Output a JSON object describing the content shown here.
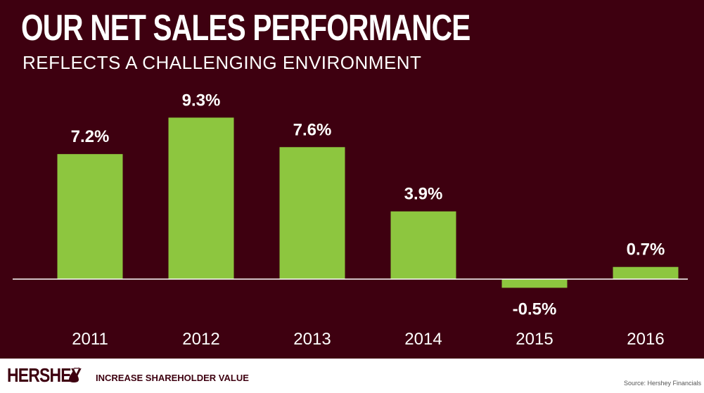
{
  "header": {
    "title": "OUR NET SALES PERFORMANCE",
    "subtitle": "REFLECTS A CHALLENGING ENVIRONMENT"
  },
  "chart_data": {
    "type": "bar",
    "categories": [
      "2011",
      "2012",
      "2013",
      "2014",
      "2015",
      "2016"
    ],
    "values": [
      7.2,
      9.3,
      7.6,
      3.9,
      -0.5,
      0.7
    ],
    "value_labels": [
      "7.2%",
      "9.3%",
      "7.6%",
      "3.9%",
      "-0.5%",
      "0.7%"
    ],
    "bar_color": "#8dc63f",
    "axis_color": "#ffffff",
    "ylim": [
      -0.5,
      9.3
    ],
    "grid": false,
    "legend": "none"
  },
  "colors": {
    "background": "#3e0010",
    "text": "#ffffff",
    "footer_background": "#ffffff",
    "footer_text": "#3e0010"
  },
  "footer": {
    "logo_text": "HERSHEY",
    "logo_icon": "hershey-kiss-icon",
    "tagline": "INCREASE SHAREHOLDER VALUE",
    "source": "Source: Hershey Financials"
  }
}
